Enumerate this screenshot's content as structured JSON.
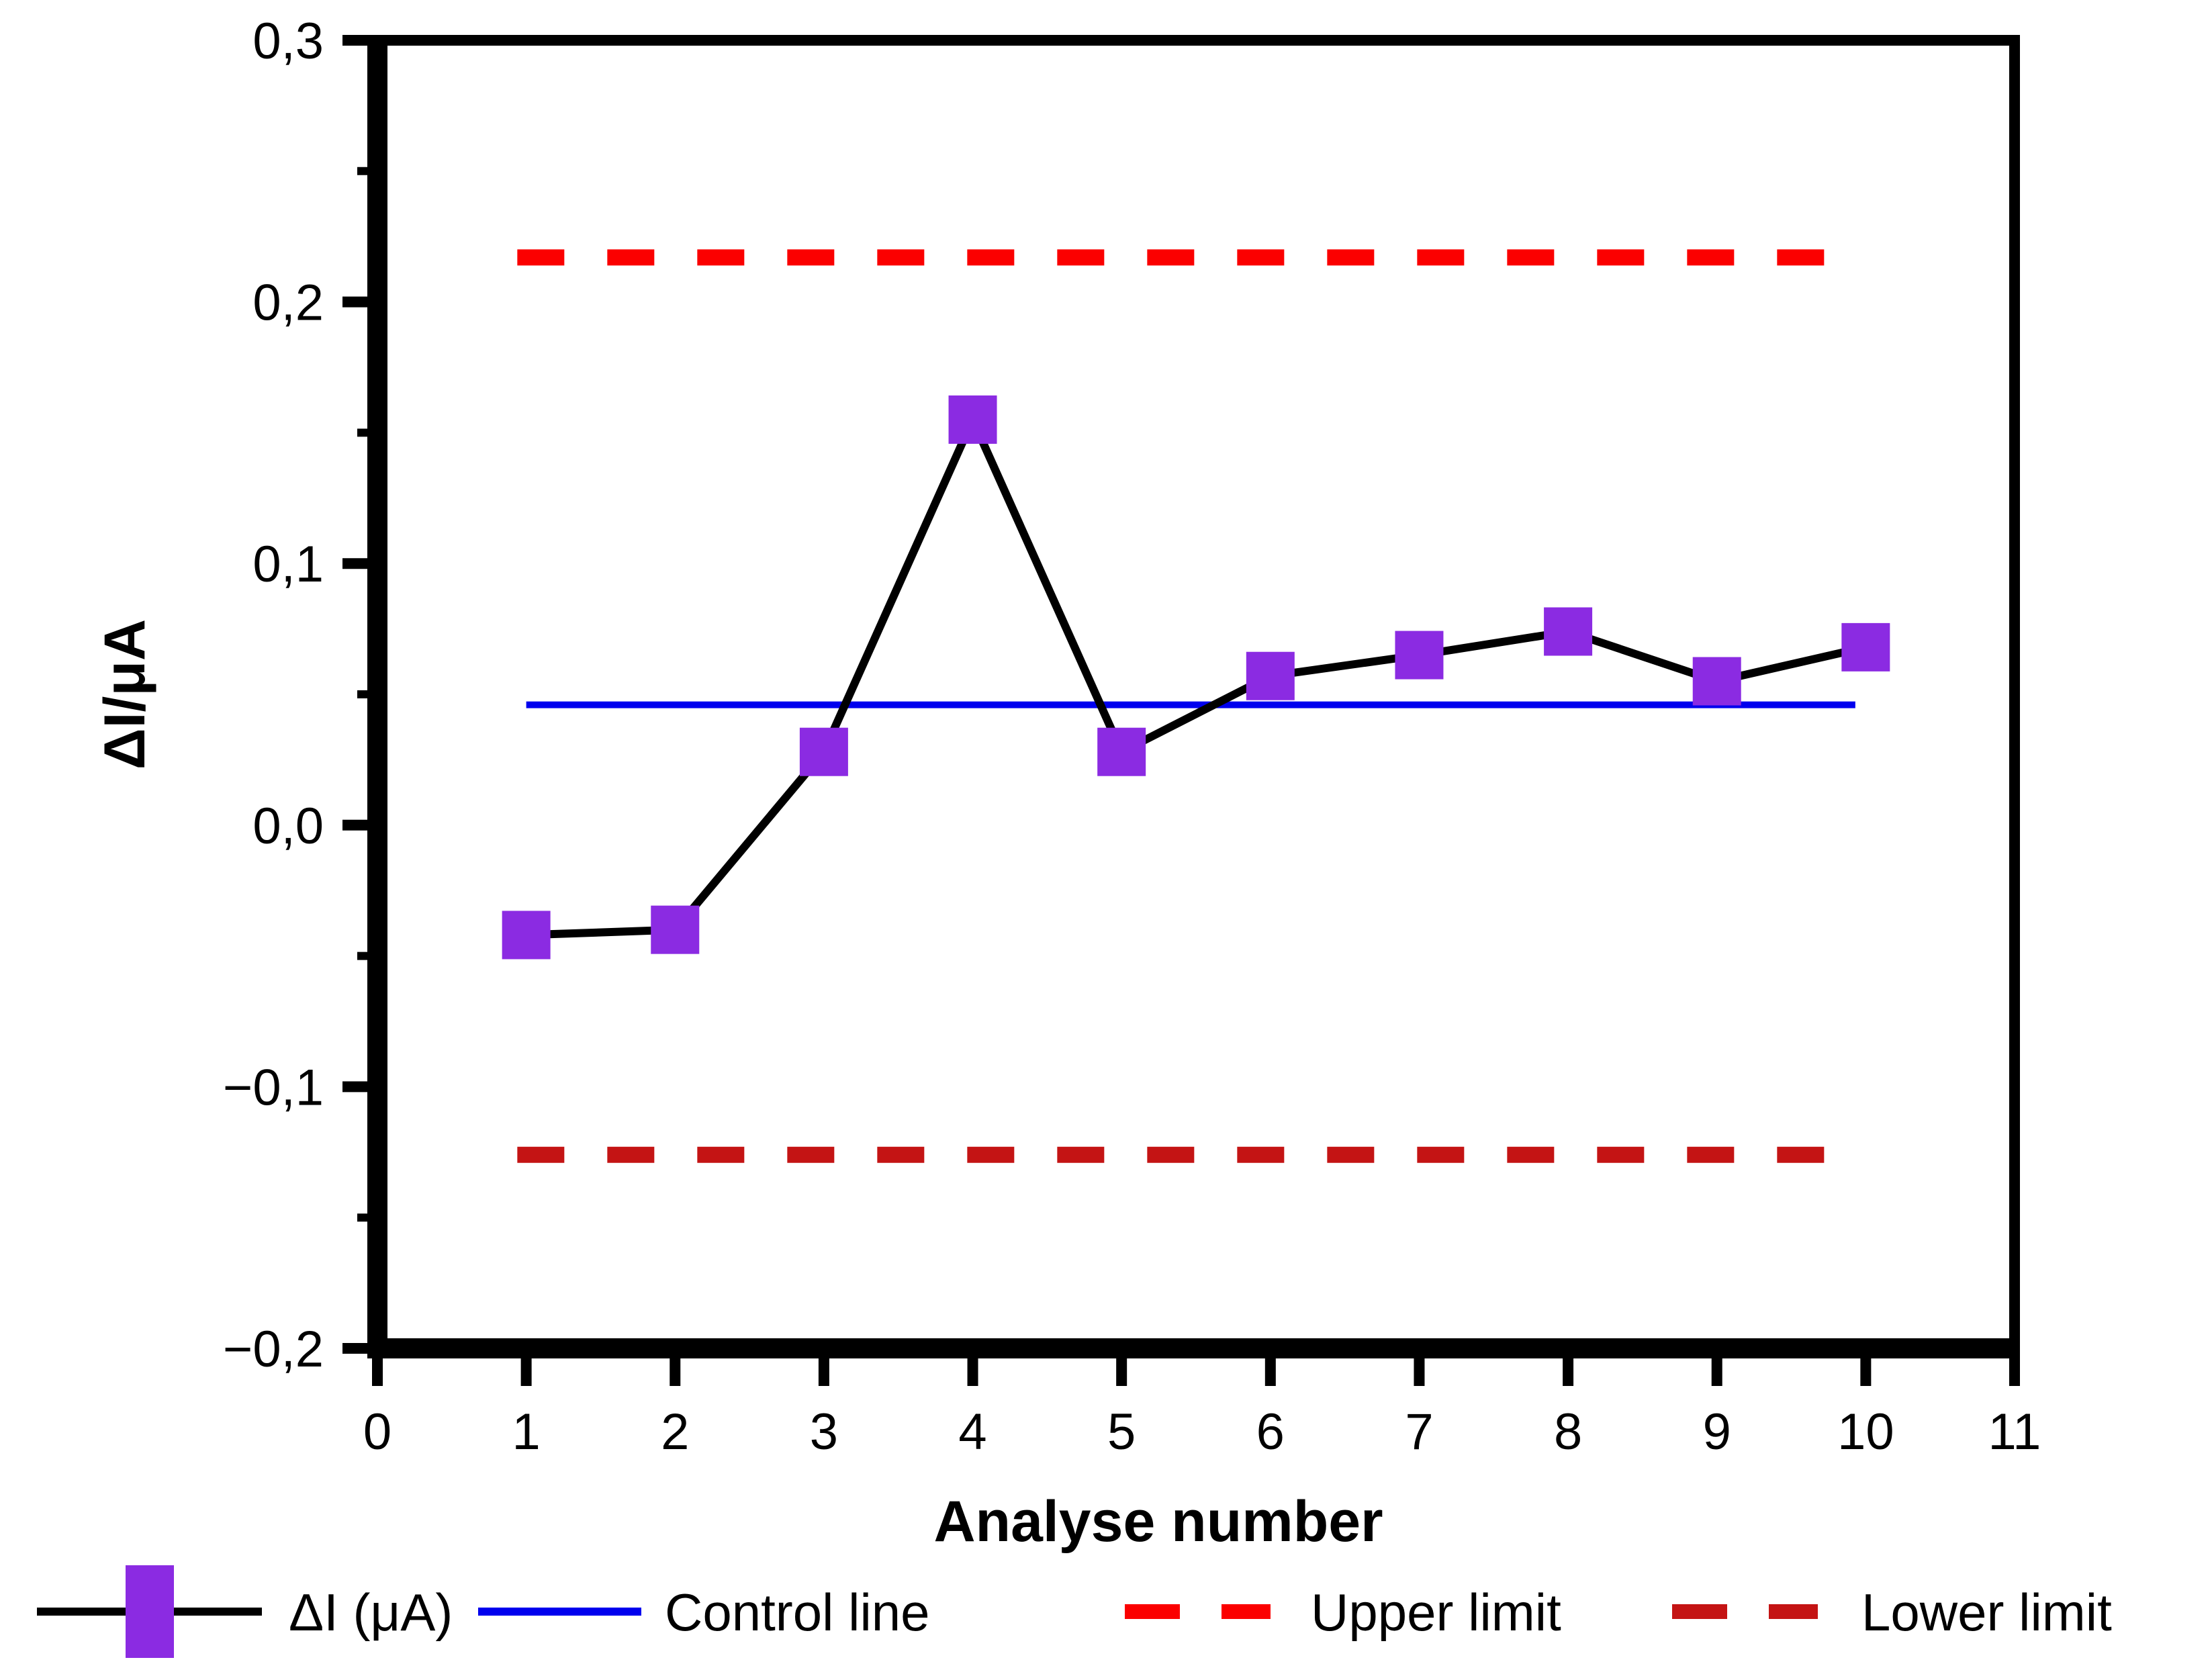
{
  "chart_data": {
    "type": "line",
    "title": "",
    "xlabel": "Analyse number",
    "ylabel": "ΔI/μA",
    "xlim": [
      0,
      11
    ],
    "ylim": [
      -0.2,
      0.3
    ],
    "grid": false,
    "decimal_separator": ",",
    "x_ticks": {
      "values": [
        0,
        1,
        2,
        3,
        4,
        5,
        6,
        7,
        8,
        9,
        10,
        11
      ],
      "labels": [
        "0",
        "1",
        "2",
        "3",
        "4",
        "5",
        "6",
        "7",
        "8",
        "9",
        "10",
        "11"
      ]
    },
    "y_ticks": {
      "values": [
        0.3,
        0.2,
        0.1,
        0.0,
        -0.1,
        -0.2
      ],
      "labels": [
        "0,3",
        "0,2",
        "0,1",
        "0,0",
        "−0,1",
        "−0,2"
      ]
    },
    "y_minor_ticks": [
      0.25,
      0.15,
      0.05,
      -0.05,
      -0.15
    ],
    "series": [
      {
        "name": "ΔI (μA)",
        "type": "scatter-line",
        "marker": "square",
        "marker_color": "#8B2BE2",
        "line_color": "#000000",
        "x": [
          1,
          2,
          3,
          4,
          5,
          6,
          7,
          8,
          9,
          10
        ],
        "y": [
          -0.042,
          -0.04,
          0.028,
          0.155,
          0.028,
          0.057,
          0.065,
          0.074,
          0.055,
          0.068
        ]
      },
      {
        "name": "Control line",
        "type": "hline",
        "style": "solid",
        "color": "#0000EE",
        "y": 0.046,
        "x_start": 1.0,
        "x_end": 9.93
      },
      {
        "name": "Upper limit",
        "type": "hline",
        "style": "dashed",
        "color": "#FB0000",
        "y": 0.217,
        "x_start": 0.94,
        "x_end": 9.79
      },
      {
        "name": "Lower limit",
        "type": "hline",
        "style": "dashed",
        "color": "#C41414",
        "y": -0.126,
        "x_start": 0.94,
        "x_end": 9.83
      }
    ],
    "legend": {
      "position": "bottom",
      "entries": [
        {
          "label": "ΔI (μA)",
          "swatch": "black-line-purple-square"
        },
        {
          "label": "Control line",
          "swatch": "blue-solid-line"
        },
        {
          "label": "Upper limit",
          "swatch": "red-dashed-line"
        },
        {
          "label": "Lower limit",
          "swatch": "darkred-dashed-line"
        }
      ]
    }
  },
  "colors": {
    "marker_purple": "#8B2BE2",
    "control_blue": "#0000EE",
    "upper_red": "#FB0000",
    "lower_darkred": "#C41414",
    "axis_black": "#000000",
    "background": "#FFFFFF"
  }
}
